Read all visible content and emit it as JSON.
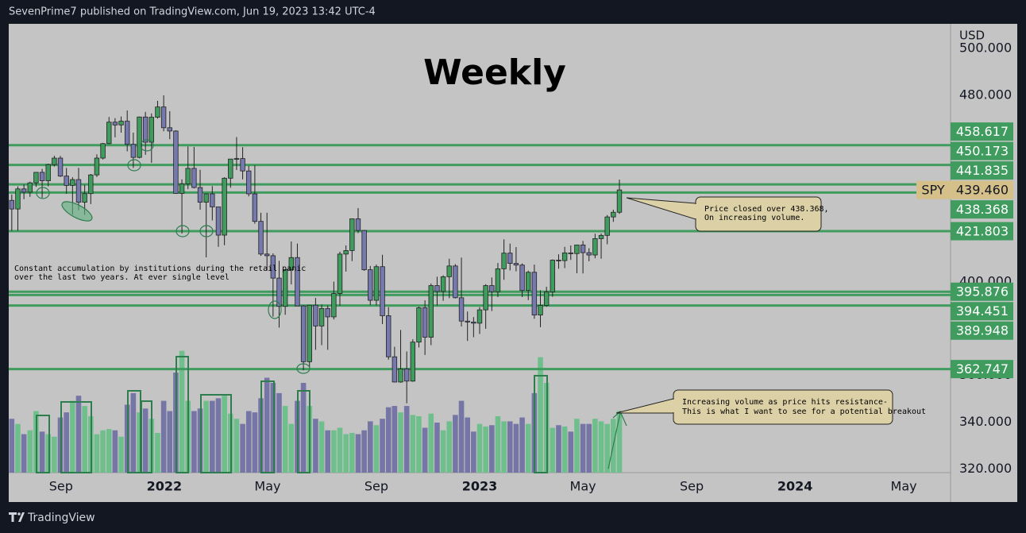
{
  "header": {
    "text": "SevenPrime7 published on TradingView.com, Jun 19, 2023 13:42 UTC-4"
  },
  "footer": {
    "brand": "TradingView"
  },
  "chart_data": {
    "type": "candlestick",
    "title": "Weekly",
    "currency": "USD",
    "xlim": [
      -0.5,
      154.5
    ],
    "xticks": [
      {
        "value": 8.1,
        "label": "Sep"
      },
      {
        "value": 25.1,
        "label": "2022"
      },
      {
        "value": 42.1,
        "label": "May"
      },
      {
        "value": 60,
        "label": "Sep"
      },
      {
        "value": 77,
        "label": "2023"
      },
      {
        "value": 94,
        "label": "May"
      },
      {
        "value": 111.9,
        "label": "Sep"
      },
      {
        "value": 128.9,
        "label": "2024"
      },
      {
        "value": 146.8,
        "label": "May"
      }
    ],
    "ylim": [
      318.4,
      510.6
    ],
    "yticks": [
      {
        "value": 500,
        "label": "500.000"
      },
      {
        "value": 480,
        "label": "480.000"
      },
      {
        "value": 400,
        "label": "400.000"
      },
      {
        "value": 360,
        "label": "360.000"
      },
      {
        "value": 340,
        "label": "340.000"
      },
      {
        "value": 320,
        "label": "320.000"
      }
    ],
    "series": [
      {
        "name": "SPY",
        "up_color": "#3f9c5e",
        "down_color": "#7679ad",
        "last_label": "439.460",
        "open": [
          435.0,
          431.3,
          439.9,
          438.5,
          442.5,
          447.0,
          443.4,
          450.3,
          453.1,
          445.4,
          441.4,
          443.9,
          434.2,
          437.9,
          445.9,
          453.1,
          459.3,
          468.5,
          467.3,
          468.9,
          459.0,
          453.4,
          470.7,
          459.9,
          470.6,
          475.0,
          466.1,
          464.7,
          438.0,
          442.0,
          448.7,
          440.5,
          434.2,
          437.8,
          432.2,
          420.1,
          444.5,
          452.7,
          452.9,
          447.6,
          437.8,
          426.0,
          412.0,
          411.3,
          401.7,
          389.6,
          405.3,
          410.5,
          389.8,
          365.9,
          390.1,
          381.2,
          388.7,
          385.1,
          395.1,
          412.0,
          413.5,
          427.1,
          422.1,
          405.3,
          392.2,
          406.6,
          385.6,
          368.0,
          357.2,
          362.8,
          357.6,
          374.3,
          389.0,
          376.4,
          398.5,
          396.0,
          402.3,
          406.9,
          393.3,
          383.3,
          382.9,
          382.4,
          388.1,
          398.5,
          395.9,
          405.7,
          412.4,
          408.0,
          407.3,
          396.4,
          404.2,
          385.9,
          390.0,
          395.8,
          409.4,
          409.2,
          412.5,
          412.2,
          415.9,
          412.6,
          411.6,
          418.6,
          420.0,
          427.9,
          429.9
        ],
        "high": [
          437.5,
          441.0,
          441.8,
          443.0,
          447.1,
          448.5,
          450.7,
          454.1,
          454.0,
          448.9,
          444.9,
          448.9,
          441.7,
          446.3,
          454.7,
          459.6,
          470.7,
          470.2,
          470.9,
          473.5,
          464.0,
          470.9,
          472.9,
          472.2,
          477.6,
          480.0,
          473.2,
          465.0,
          444.0,
          458.1,
          457.9,
          448.1,
          438.0,
          441.1,
          432.3,
          444.9,
          452.7,
          462.1,
          457.8,
          449.8,
          450.0,
          429.7,
          429.7,
          412.3,
          409.1,
          405.6,
          417.4,
          416.5,
          390.1,
          390.1,
          393.2,
          390.4,
          390.0,
          400.2,
          413.0,
          415.7,
          427.2,
          431.7,
          422.3,
          406.9,
          407.5,
          411.7,
          389.3,
          372.3,
          379.5,
          370.3,
          375.5,
          389.5,
          392.2,
          399.4,
          402.3,
          402.9,
          410.0,
          407.7,
          410.5,
          387.4,
          385.0,
          389.3,
          399.1,
          402.0,
          408.2,
          418.3,
          416.5,
          415.0,
          408.0,
          404.9,
          407.5,
          396.5,
          398.0,
          409.7,
          411.9,
          415.1,
          415.7,
          416.0,
          417.6,
          414.5,
          420.7,
          420.8,
          428.7,
          431.0,
          443.9
        ],
        "low": [
          421.9,
          422.0,
          435.5,
          436.5,
          440.8,
          436.1,
          441.0,
          449.5,
          445.0,
          437.8,
          428.9,
          430.8,
          428.8,
          433.4,
          445.0,
          452.5,
          459.0,
          462.0,
          464.0,
          456.0,
          448.9,
          453.0,
          454.5,
          451.1,
          470.0,
          464.6,
          461.2,
          437.8,
          420.8,
          439.8,
          440.1,
          431.0,
          410.6,
          426.4,
          415.1,
          415.8,
          440.4,
          448.0,
          444.0,
          436.7,
          425.0,
          411.2,
          405.0,
          385.2,
          380.5,
          386.0,
          399.0,
          389.8,
          362.2,
          363.3,
          371.0,
          373.0,
          371.0,
          384.0,
          389.9,
          404.5,
          409.0,
          421.0,
          404.8,
          390.1,
          390.0,
          382.0,
          366.8,
          357.0,
          356.9,
          348.1,
          357.3,
          372.0,
          368.8,
          373.0,
          390.0,
          392.0,
          393.1,
          393.0,
          381.0,
          374.8,
          376.4,
          377.8,
          380.0,
          387.6,
          393.6,
          401.0,
          405.0,
          404.6,
          393.6,
          392.3,
          384.3,
          380.7,
          389.4,
          393.7,
          405.7,
          406.0,
          409.5,
          403.8,
          403.7,
          408.9,
          410.2,
          410.0,
          416.2,
          425.8,
          429.2
        ],
        "close": [
          431.3,
          439.9,
          438.5,
          442.5,
          447.0,
          443.4,
          450.3,
          453.1,
          445.4,
          441.4,
          443.9,
          434.2,
          437.9,
          445.9,
          453.1,
          459.3,
          468.5,
          467.3,
          468.9,
          459.0,
          453.4,
          470.7,
          459.9,
          470.6,
          475.0,
          466.1,
          464.7,
          438.0,
          442.0,
          448.7,
          440.5,
          434.2,
          437.8,
          432.2,
          420.1,
          444.5,
          452.7,
          452.9,
          447.6,
          437.8,
          426.0,
          412.0,
          411.3,
          401.7,
          389.6,
          405.3,
          410.5,
          389.8,
          365.9,
          390.1,
          381.2,
          388.7,
          385.1,
          395.1,
          412.0,
          413.5,
          427.1,
          422.1,
          405.3,
          392.2,
          406.6,
          385.6,
          368.0,
          357.2,
          362.8,
          357.6,
          374.3,
          389.0,
          376.4,
          398.5,
          396.0,
          402.3,
          406.9,
          393.3,
          383.3,
          382.9,
          382.4,
          388.1,
          398.5,
          395.9,
          405.7,
          412.4,
          408.0,
          407.3,
          396.4,
          404.2,
          385.9,
          390.0,
          395.8,
          409.4,
          409.2,
          412.5,
          412.2,
          415.9,
          412.6,
          411.6,
          418.6,
          420.0,
          427.9,
          429.9,
          439.46
        ]
      }
    ],
    "volume": {
      "up_color": "#6fbf8c",
      "down_color": "#7575a6",
      "vlim": [
        0,
        3500
      ],
      "values": [
        420,
        380,
        300,
        330,
        480,
        320,
        300,
        280,
        430,
        470,
        560,
        600,
        520,
        440,
        300,
        330,
        340,
        330,
        280,
        530,
        620,
        470,
        500,
        420,
        310,
        560,
        480,
        780,
        950,
        560,
        480,
        500,
        560,
        560,
        580,
        600,
        460,
        420,
        380,
        480,
        470,
        580,
        740,
        700,
        620,
        520,
        380,
        560,
        700,
        520,
        420,
        400,
        330,
        330,
        350,
        300,
        310,
        300,
        330,
        400,
        370,
        420,
        510,
        520,
        470,
        520,
        450,
        440,
        350,
        460,
        390,
        330,
        400,
        450,
        560,
        430,
        320,
        380,
        360,
        370,
        440,
        400,
        400,
        380,
        430,
        380,
        620,
        900,
        700,
        350,
        370,
        360,
        320,
        420,
        380,
        380,
        420,
        400,
        380,
        420,
        480
      ]
    },
    "levels": {
      "color": "#3f9c5e",
      "values": [
        458.617,
        450.173,
        441.835,
        438.368,
        421.803,
        395.876,
        394.451,
        389.948,
        362.747
      ]
    },
    "notes": [
      {
        "lines": [
          "Constant accumulation by institutions during the retail panic",
          "over the last two years. At ever single level"
        ]
      },
      {
        "lines": [
          "Price closed over 438.368,",
          "On increasing volume."
        ]
      },
      {
        "lines": [
          "Increasing volume as price hits resistance-",
          "This is what I want to see for a potential breakout"
        ]
      }
    ]
  }
}
